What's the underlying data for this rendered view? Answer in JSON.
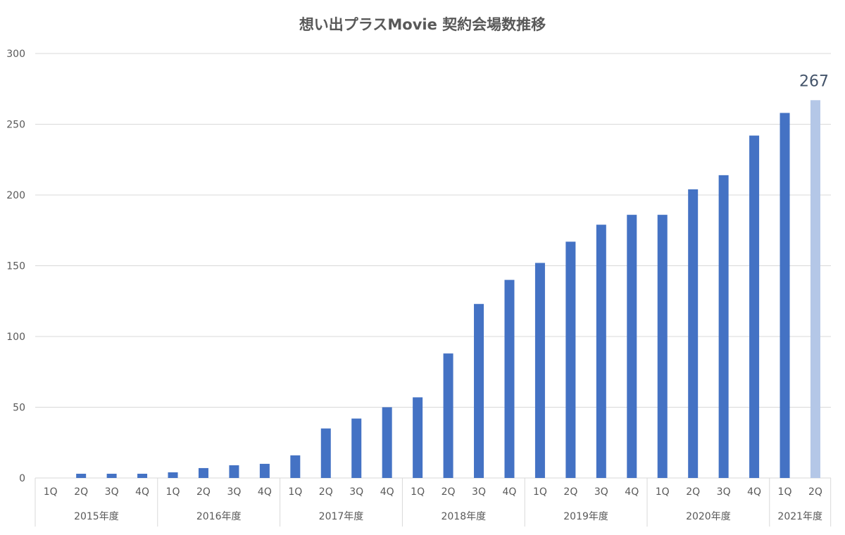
{
  "chart_data": {
    "type": "bar",
    "title": "想い出プラスMovie 契約会場数推移",
    "xlabel": "",
    "ylabel": "",
    "ylim": [
      0,
      300
    ],
    "yticks": [
      0,
      50,
      100,
      150,
      200,
      250,
      300
    ],
    "grid": true,
    "legend": "none",
    "groups": [
      {
        "label": "2015年度",
        "quarters": [
          "1Q",
          "2Q",
          "3Q",
          "4Q"
        ]
      },
      {
        "label": "2016年度",
        "quarters": [
          "1Q",
          "2Q",
          "3Q",
          "4Q"
        ]
      },
      {
        "label": "2017年度",
        "quarters": [
          "1Q",
          "2Q",
          "3Q",
          "4Q"
        ]
      },
      {
        "label": "2018年度",
        "quarters": [
          "1Q",
          "2Q",
          "3Q",
          "4Q"
        ]
      },
      {
        "label": "2019年度",
        "quarters": [
          "1Q",
          "2Q",
          "3Q",
          "4Q"
        ]
      },
      {
        "label": "2020年度",
        "quarters": [
          "1Q",
          "2Q",
          "3Q",
          "4Q"
        ]
      },
      {
        "label": "2021年度",
        "quarters": [
          "1Q",
          "2Q"
        ]
      }
    ],
    "values": [
      0,
      3,
      3,
      3,
      4,
      7,
      9,
      10,
      16,
      35,
      42,
      50,
      57,
      88,
      123,
      140,
      152,
      167,
      179,
      186,
      186,
      204,
      214,
      242,
      258,
      267
    ],
    "data_labels": [
      {
        "index": 25,
        "text": "267"
      }
    ],
    "colors": {
      "bar": "#4472c4",
      "highlight_bar": "#b4c7e7",
      "label": "#44546a"
    },
    "highlight_index": 25
  }
}
